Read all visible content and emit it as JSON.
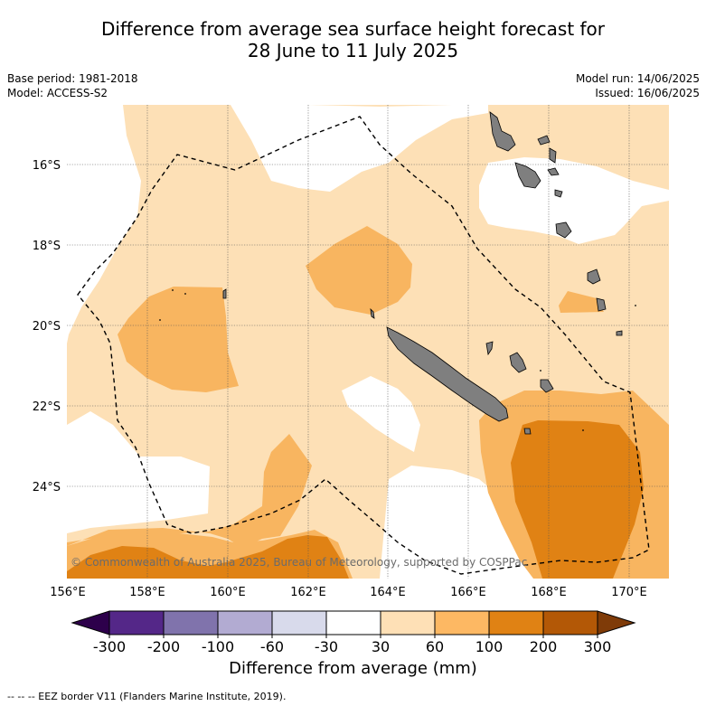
{
  "title": {
    "line1": "Difference from average sea surface height forecast for",
    "line2": "28 June to 11 July 2025"
  },
  "meta": {
    "base_period": "Base period: 1981-2018",
    "model": "Model: ACCESS-S2",
    "model_run": "Model run: 14/06/2025",
    "issued": "Issued: 16/06/2025"
  },
  "map": {
    "lat_labels": [
      "16°S",
      "18°S",
      "20°S",
      "22°S",
      "24°S"
    ],
    "lon_labels": [
      "156°E",
      "158°E",
      "160°E",
      "162°E",
      "164°E",
      "166°E",
      "168°E",
      "170°E"
    ],
    "copyright": "© Commonwealth of Australia 2025, Bureau of Meteorology, supported by COSPPac",
    "colors": {
      "land": "#7f7f7f",
      "c30_60": "#fde0b6",
      "c60_100": "#f8b560",
      "c100_200": "#e08214",
      "c200_300": "#b35806"
    }
  },
  "colorbar": {
    "ticks": [
      "-300",
      "-200",
      "-100",
      "-60",
      "-30",
      "30",
      "60",
      "100",
      "200",
      "300"
    ],
    "colors": [
      "#542788",
      "#8073ac",
      "#b2abd2",
      "#d8daeb",
      "#ffffff",
      "#fee0b6",
      "#fdb863",
      "#e08214",
      "#b35806"
    ],
    "under_color": "#2d004b",
    "over_color": "#7f3b08",
    "label": "Difference from average (mm)"
  },
  "footer": "--  --  -- EEZ border V11 (Flanders Marine Institute, 2019)."
}
